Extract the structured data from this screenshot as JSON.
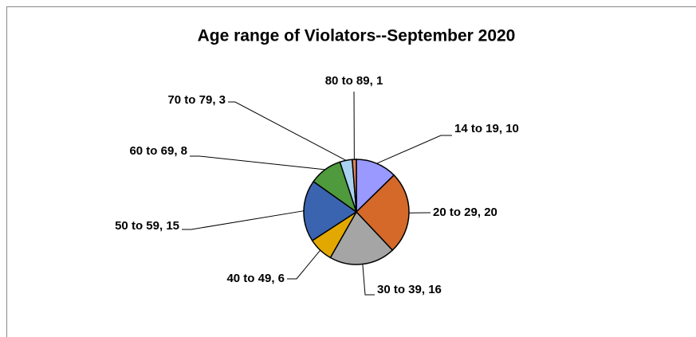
{
  "chart_data": {
    "type": "pie",
    "title": "Age range of Violators--September 2020",
    "categories": [
      "14 to 19",
      "20 to 29",
      "30 to 39",
      "40 to 49",
      "50 to 59",
      "60 to 69",
      "70 to 79",
      "80 to 89"
    ],
    "values": [
      10,
      20,
      16,
      6,
      15,
      8,
      3,
      1
    ],
    "colors": [
      "#9999ff",
      "#d4692a",
      "#a5a5a5",
      "#e3a800",
      "#3b64b0",
      "#4e9a3c",
      "#a9d2f0",
      "#d9825b"
    ]
  }
}
